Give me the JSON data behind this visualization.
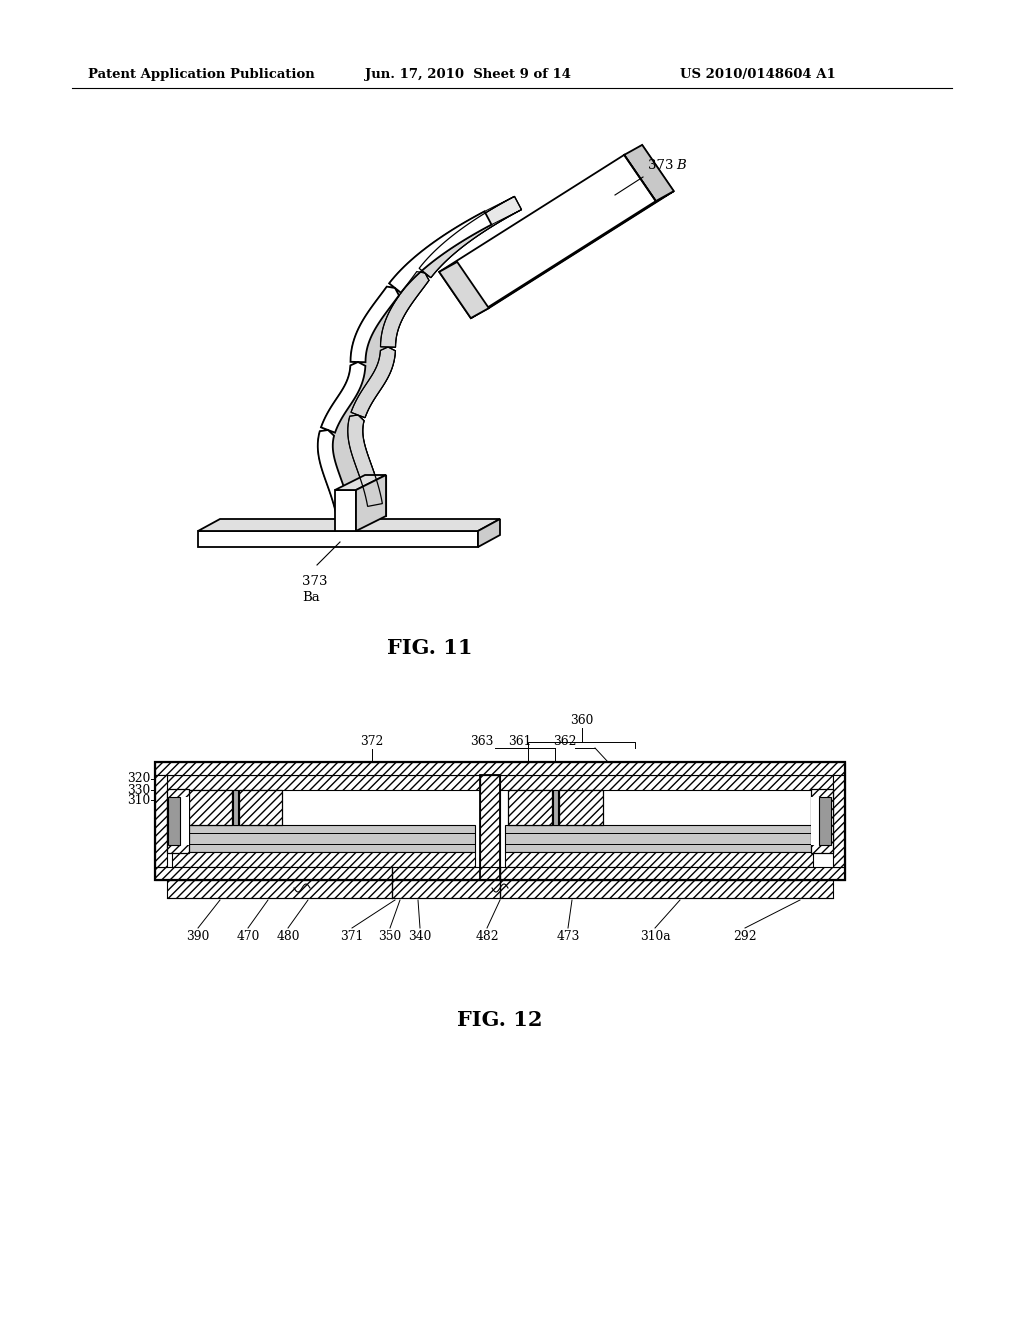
{
  "bg_color": "#ffffff",
  "header_left": "Patent Application Publication",
  "header_mid": "Jun. 17, 2010  Sheet 9 of 14",
  "header_right": "US 2010/0148604 A1",
  "fig11_caption": "FIG. 11",
  "fig12_caption": "FIG. 12",
  "line_color": "#000000"
}
